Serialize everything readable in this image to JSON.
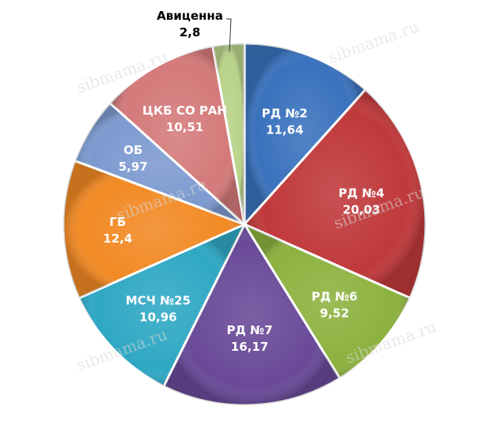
{
  "chart_data": {
    "type": "pie",
    "categories": [
      "РД №2",
      "РД №4",
      "РД №6",
      "РД №7",
      "МСЧ №25",
      "ГБ",
      "ОБ",
      "ЦКБ СО РАН",
      "Авиценна"
    ],
    "values": [
      11.64,
      20.03,
      9.52,
      16.17,
      10.96,
      12.4,
      5.97,
      10.51,
      2.8
    ],
    "value_labels": [
      "11,64",
      "20,03",
      "9,52",
      "16,17",
      "10,96",
      "12,4",
      "5,97",
      "10,51",
      "2,8"
    ],
    "colors": [
      "#3a72bd",
      "#c0393b",
      "#8db23f",
      "#6a4a98",
      "#2fa8c4",
      "#f28a25",
      "#7d9ad0",
      "#d47a7a",
      "#b9d38a"
    ],
    "title": "",
    "legend": "none"
  },
  "watermark": "sibmama.ru"
}
